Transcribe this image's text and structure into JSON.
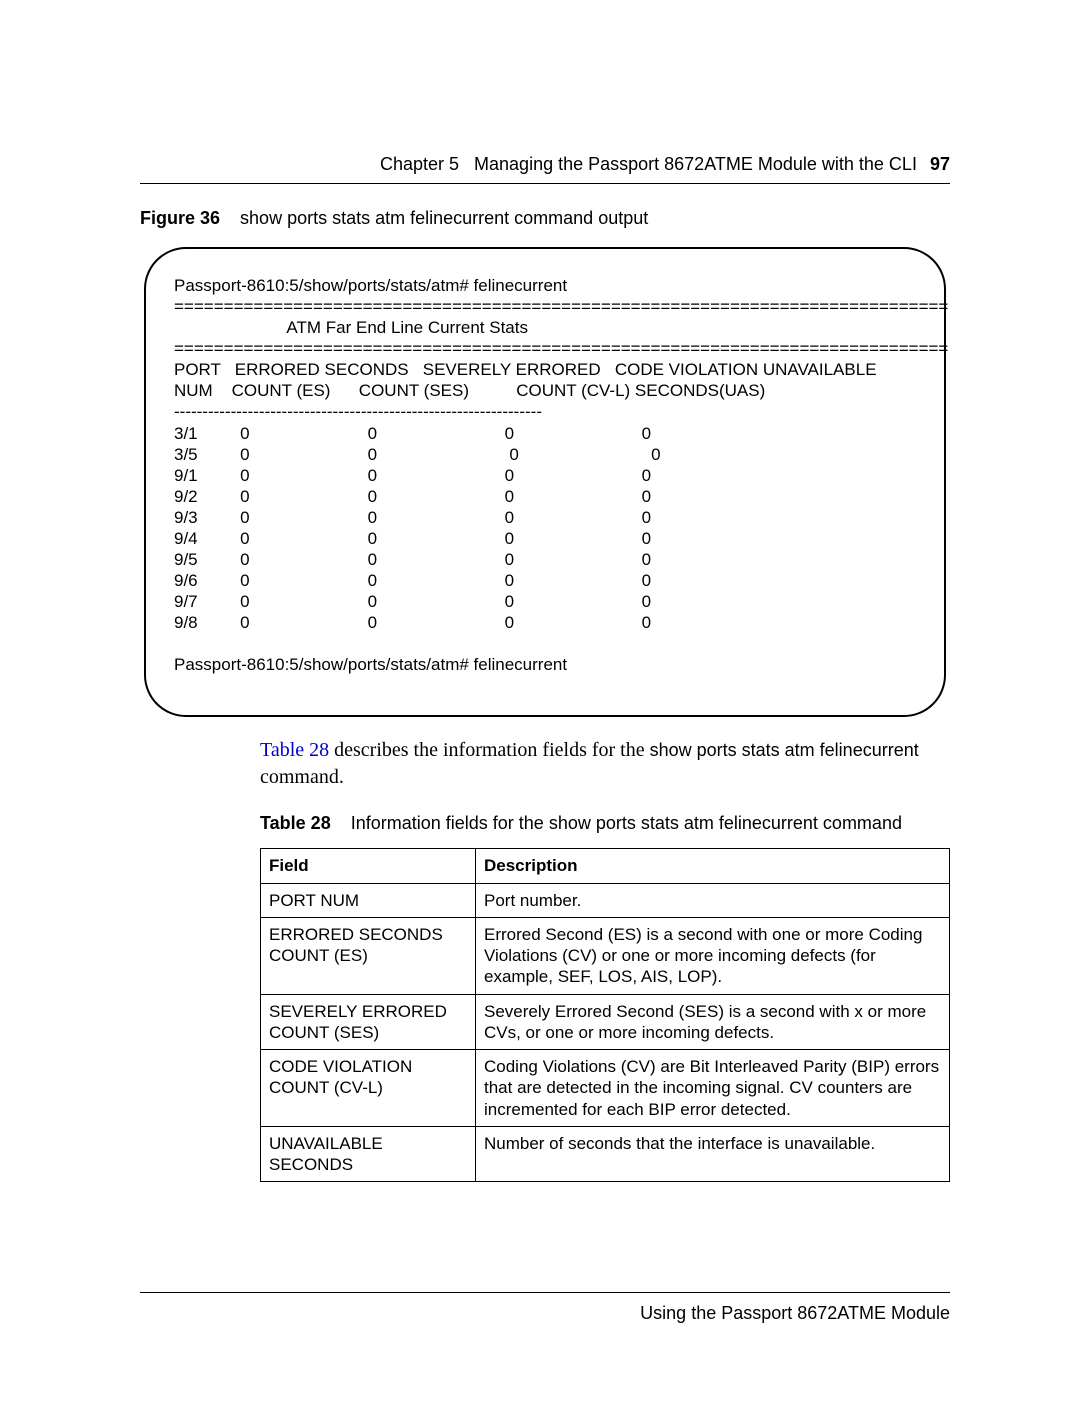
{
  "header": {
    "chapter_prefix": "Chapter 5",
    "chapter_title": "Managing the Passport 8672ATME Module with the CLI",
    "page_number": "97"
  },
  "figure": {
    "label": "Figure 36",
    "caption": "show ports stats atm felinecurrent command output"
  },
  "cli": {
    "prompt1": "Passport-8610:5/show/ports/stats/atm# felinecurrent",
    "rule_eq": "==============================================================================",
    "title": "                        ATM Far End Line Current Stats",
    "hdr1": "PORT   ERRORED SECONDS   SEVERELY ERRORED   CODE VIOLATION UNAVAILABLE",
    "hdr2": "NUM    COUNT (ES)      COUNT (SES)          COUNT (CV-L) SECONDS(UAS)",
    "rule_dash": "-----------------------------------------------------------------",
    "rows": [
      "3/1         0                         0                           0                           0",
      "3/5         0                         0                            0                            0",
      "9/1         0                         0                           0                           0",
      "9/2         0                         0                           0                           0",
      "9/3         0                         0                           0                           0",
      "9/4         0                         0                           0                           0",
      "9/5         0                         0                           0                           0",
      "9/6         0                         0                           0                           0",
      "9/7         0                         0                           0                           0",
      "9/8         0                         0                           0                           0"
    ],
    "prompt2": "Passport-8610:5/show/ports/stats/atm# felinecurrent"
  },
  "paragraph": {
    "link_text": "Table 28",
    "after_link": " describes the information fields for the ",
    "mono1": "show ports stats atm felinecurrent",
    "after_mono": " command."
  },
  "table_caption": {
    "label": "Table 28",
    "caption": "Information fields for the show ports stats atm felinecurrent command"
  },
  "table": {
    "head_field": "Field",
    "head_desc": "Description",
    "rows": [
      {
        "field": "PORT NUM",
        "desc": "Port number."
      },
      {
        "field": "ERRORED SECONDS COUNT (ES)",
        "desc": "Errored Second (ES) is a second with one or more Coding Violations (CV) or one or more incoming defects (for example, SEF, LOS, AIS, LOP)."
      },
      {
        "field": "SEVERELY ERRORED COUNT (SES)",
        "desc": "Severely Errored Second (SES) is a second with x or more CVs, or one or more incoming defects."
      },
      {
        "field": "CODE VIOLATION COUNT (CV-L)",
        "desc": "Coding Violations (CV) are Bit Interleaved Parity (BIP) errors that are detected in the incoming signal. CV counters are incremented for each BIP error detected."
      },
      {
        "field": "UNAVAILABLE SECONDS",
        "desc": "Number of seconds that the interface is unavailable."
      }
    ]
  },
  "footer": {
    "text": "Using the Passport 8672ATME Module"
  },
  "style": {
    "link_color": "#0000cc"
  }
}
